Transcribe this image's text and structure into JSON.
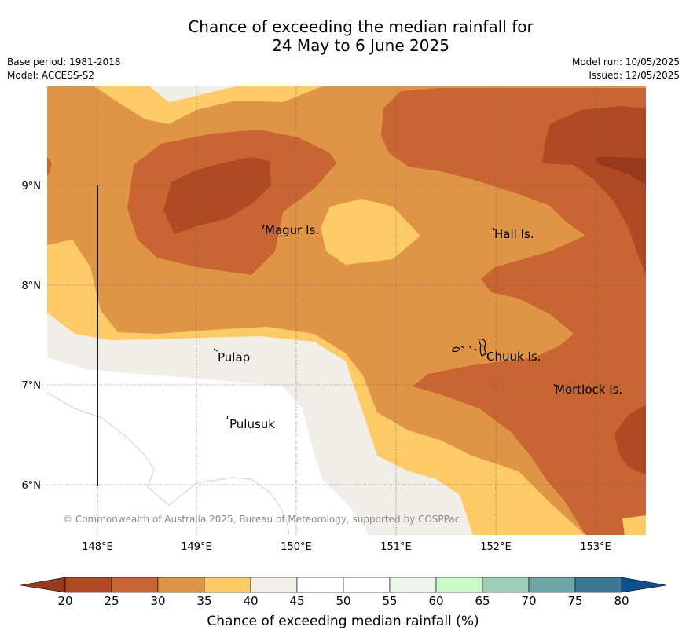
{
  "header": {
    "title_line1": "Chance of exceeding the median rainfall for",
    "title_line2": "24 May to 6 June 2025",
    "base_period": "Base period: 1981-2018",
    "model": "Model: ACCESS-S2",
    "model_run": "Model run: 10/05/2025",
    "issued": "Issued: 12/05/2025"
  },
  "map": {
    "lat_labels": [
      "9°N",
      "8°N",
      "7°N",
      "6°N"
    ],
    "lon_labels": [
      "148°E",
      "149°E",
      "150°E",
      "151°E",
      "152°E",
      "153°E"
    ],
    "places": [
      "Magur Is.",
      "Hall Is.",
      "Pulap",
      "Chuuk Is.",
      "Mortlock Is.",
      "Pulusuk"
    ],
    "copyright": "© Commonwealth of Australia 2025, Bureau of Meteorology, supported by COSPPac"
  },
  "colorbar": {
    "label": "Chance of exceeding median rainfall (%)",
    "ticks": [
      "20",
      "25",
      "30",
      "35",
      "40",
      "45",
      "50",
      "55",
      "60",
      "65",
      "70",
      "75",
      "80"
    ],
    "colors": [
      "#b04a25",
      "#c96433",
      "#e09546",
      "#fdcb66",
      "#f1ede8",
      "#ffffff",
      "#ffffff",
      "#eef5ec",
      "#ccf7c9",
      "#9ecfb6",
      "#6ea5a6",
      "#3e7695"
    ],
    "under_color": "#97391e",
    "over_color": "#0d4e8c"
  }
}
